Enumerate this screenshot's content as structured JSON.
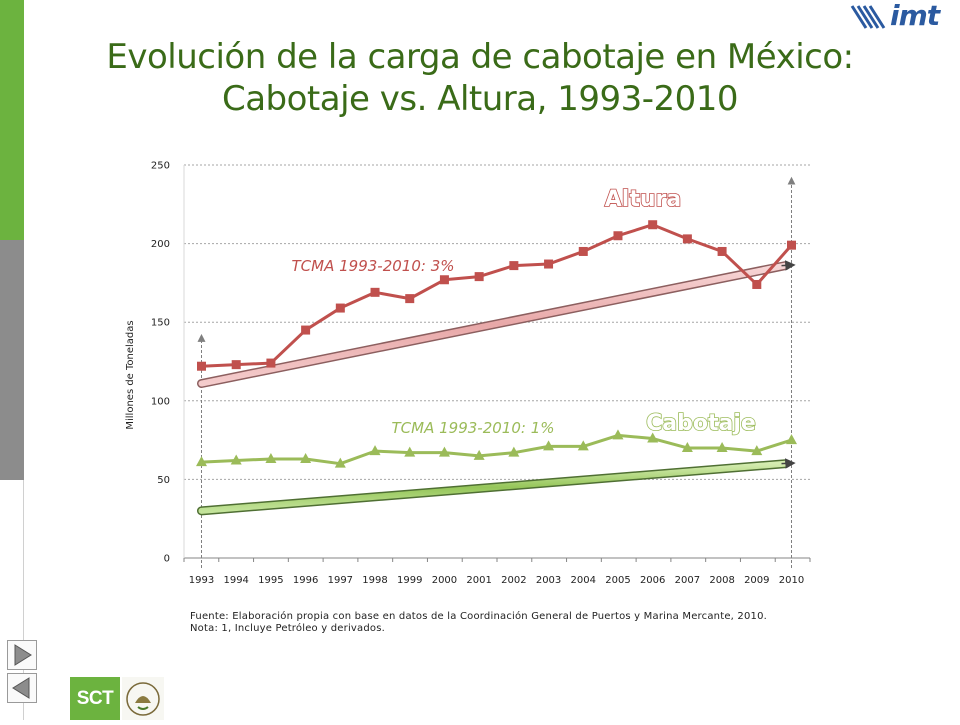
{
  "slide": {
    "title_line1": "Evolución de la carga de cabotaje en México:",
    "title_line2": "Cabotaje vs. Altura, 1993-2010",
    "footnote_line1": "Fuente: Elaboración propia con base en datos de la Coordinación General de Puertos y Marina Mercante, 2010.",
    "footnote_line2": "Nota: 1, Incluye Petróleo y derivados.",
    "logo_text": "imt",
    "sct_logo_text": "SCT",
    "icons": [
      "next-slide-icon",
      "previous-slide-icon",
      "national-seal-icon"
    ]
  },
  "chart_data": {
    "type": "line",
    "title": "",
    "xlabel": "",
    "ylabel": "Millones de Toneladas",
    "ylim": [
      0,
      250
    ],
    "yticks": [
      0,
      50,
      100,
      150,
      200,
      250
    ],
    "grid": true,
    "categories": [
      "1993",
      "1994",
      "1995",
      "1996",
      "1997",
      "1998",
      "1999",
      "2000",
      "2001",
      "2002",
      "2003",
      "2004",
      "2005",
      "2006",
      "2007",
      "2008",
      "2009",
      "2010"
    ],
    "series": [
      {
        "name": "Altura",
        "color": "#c0504d",
        "marker": "square",
        "values": [
          122,
          123,
          124,
          145,
          159,
          169,
          165,
          177,
          179,
          186,
          187,
          195,
          205,
          212,
          203,
          195,
          174,
          199
        ]
      },
      {
        "name": "Cabotaje",
        "color": "#9bbb59",
        "marker": "triangle",
        "values": [
          61,
          62,
          63,
          63,
          60,
          68,
          67,
          67,
          65,
          67,
          71,
          71,
          78,
          76,
          70,
          70,
          68,
          75
        ]
      }
    ],
    "trend_annotations": [
      {
        "label": "TCMA 1993-2010: 3%",
        "series": "Altura",
        "color": "#c0504d"
      },
      {
        "label": "TCMA 1993-2010: 1%",
        "series": "Cabotaje",
        "color": "#9bbb59"
      }
    ]
  }
}
